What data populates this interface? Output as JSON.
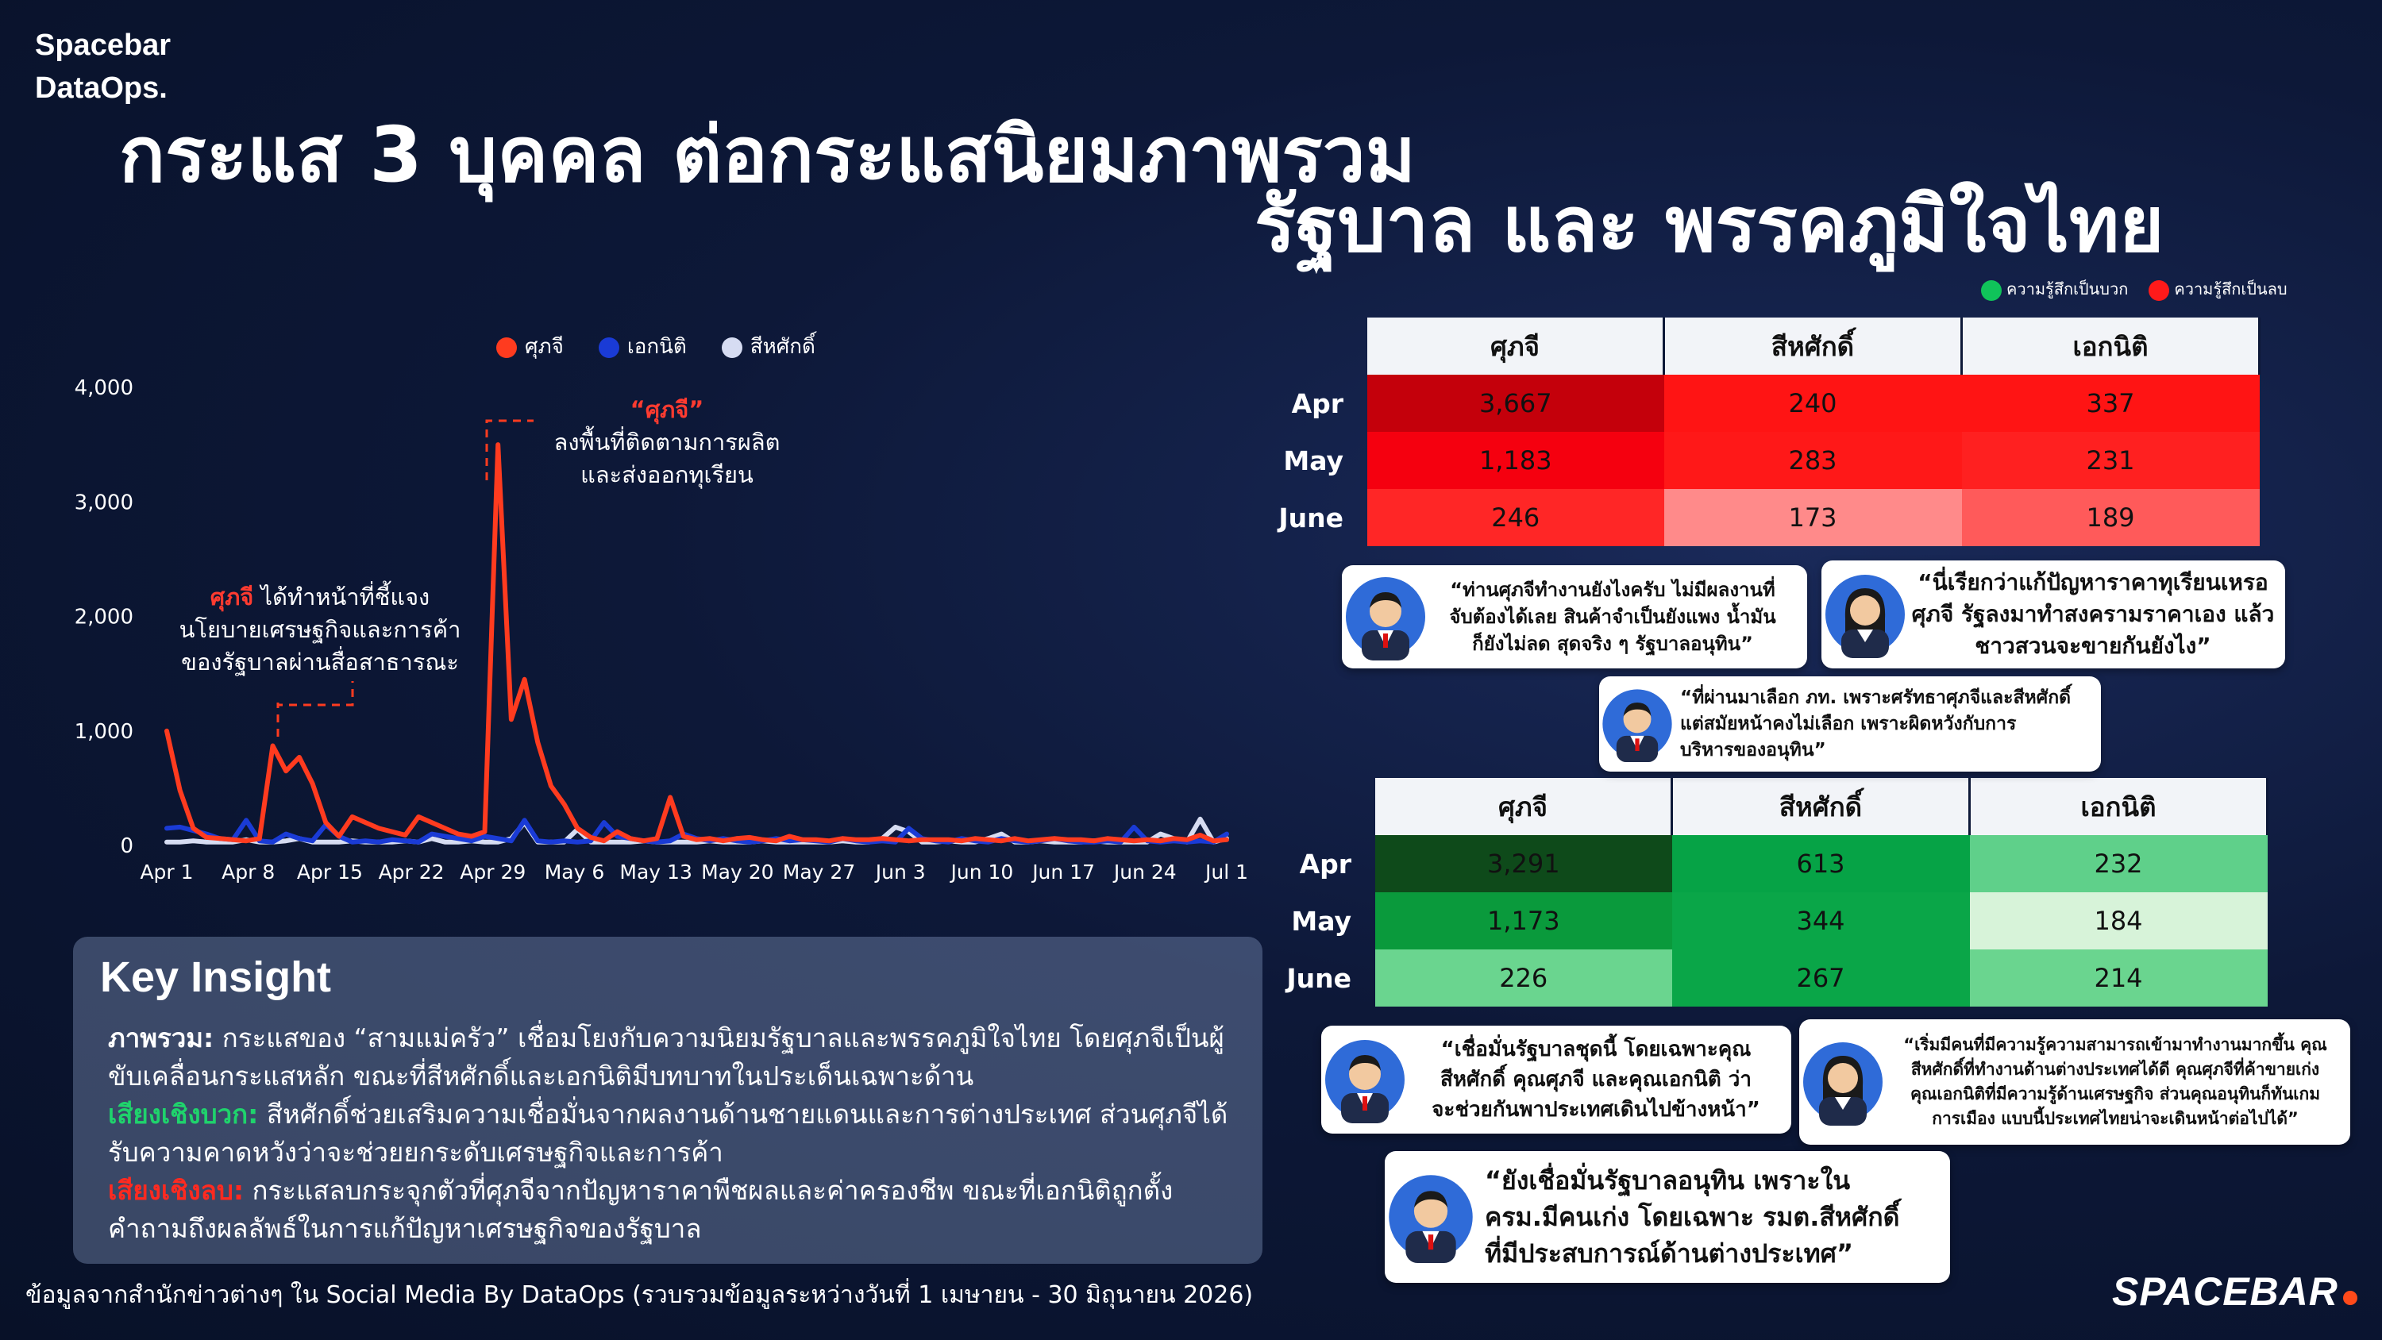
{
  "brand": {
    "line1": "Spacebar",
    "line2": "DataOps."
  },
  "title": {
    "line1": "กระแส 3 บุคคล ต่อกระแสนิยมภาพรวม",
    "line2": "รัฐบาล และ พรรคภูมิใจไทย"
  },
  "sentiment_legend": {
    "positive": "ความรู้สึกเป็นบวก",
    "negative": "ความรู้สึกเป็นลบ",
    "positive_color": "#10c35a",
    "negative_color": "#ff1a1a"
  },
  "chart_data": {
    "type": "line",
    "series": [
      {
        "name": "ศุภจี",
        "color": "#ff3b1f",
        "values": [
          1000,
          480,
          150,
          70,
          60,
          50,
          40,
          60,
          870,
          650,
          770,
          540,
          200,
          80,
          250,
          200,
          150,
          120,
          90,
          250,
          200,
          150,
          100,
          80,
          120,
          3500,
          1100,
          1450,
          900,
          520,
          360,
          150,
          70,
          40,
          120,
          60,
          40,
          60,
          420,
          80,
          50,
          60,
          40,
          60,
          70,
          50,
          40,
          80,
          50,
          50,
          40,
          60,
          50,
          50,
          60,
          50,
          40,
          50,
          50,
          50,
          40,
          60,
          50,
          40,
          60,
          40,
          50,
          60,
          50,
          50,
          40,
          60,
          50,
          40,
          50,
          40,
          60,
          50,
          90,
          40,
          50
        ]
      },
      {
        "name": "เอกนิติ",
        "color": "#1a3bd6",
        "values": [
          150,
          160,
          130,
          100,
          60,
          50,
          220,
          40,
          30,
          100,
          60,
          40,
          180,
          80,
          30,
          40,
          30,
          50,
          40,
          30,
          100,
          80,
          60,
          40,
          80,
          60,
          40,
          220,
          40,
          30,
          40,
          30,
          40,
          200,
          80,
          60,
          40,
          30,
          40,
          100,
          60,
          40,
          60,
          40,
          30,
          40,
          60,
          40,
          50,
          40,
          30,
          60,
          40,
          30,
          40,
          30,
          150,
          60,
          40,
          30,
          60,
          40,
          30,
          60,
          40,
          30,
          40,
          60,
          40,
          30,
          30,
          40,
          30,
          160,
          40,
          30,
          40,
          30,
          40,
          30,
          100
        ]
      },
      {
        "name": "สีหศักดิ์",
        "color": "#d6dcf2",
        "values": [
          30,
          30,
          40,
          30,
          30,
          30,
          50,
          30,
          30,
          40,
          60,
          30,
          30,
          30,
          40,
          30,
          30,
          30,
          40,
          30,
          60,
          30,
          30,
          40,
          30,
          30,
          60,
          200,
          30,
          30,
          30,
          140,
          30,
          30,
          30,
          30,
          40,
          30,
          30,
          30,
          30,
          40,
          30,
          30,
          30,
          40,
          30,
          30,
          30,
          30,
          30,
          40,
          30,
          30,
          60,
          160,
          120,
          30,
          30,
          40,
          30,
          30,
          60,
          100,
          30,
          30,
          40,
          30,
          30,
          30,
          40,
          30,
          30,
          30,
          30,
          100,
          60,
          30,
          230,
          30,
          60
        ]
      }
    ],
    "x_ticks": [
      "Apr 1",
      "Apr 8",
      "Apr 15",
      "Apr 22",
      "Apr 29",
      "May 6",
      "May 13",
      "May 20",
      "May 27",
      "Jun 3",
      "Jun 10",
      "Jun 17",
      "Jun 24",
      "Jul 1"
    ],
    "y_ticks": [
      "0",
      "1,000",
      "2,000",
      "3,000",
      "4,000"
    ],
    "ylim": [
      0,
      4000
    ],
    "legend": "top",
    "grid": false,
    "annotations": [
      {
        "name": "“ศุภจี”",
        "text1": "ลงพื้นที่ติดตามการผลิต",
        "text2": "และส่งออกทุเรียน"
      },
      {
        "name": "ศุภจี",
        "text1a": " ได้ทำหน้าที่ชี้แจง",
        "text2": "นโยบายเศรษฐกิจและการค้า",
        "text3": "ของรัฐบาลผ่านสื่อสาธารณะ"
      }
    ]
  },
  "negative_table": {
    "columns": [
      "ศุภจี",
      "สีหศักดิ์",
      "เอกนิติ"
    ],
    "rows": [
      {
        "label": "Apr",
        "values": [
          "3,667",
          "240",
          "337"
        ],
        "colors": [
          "#c4000b",
          "#ff1414",
          "#ff1414"
        ]
      },
      {
        "label": "May",
        "values": [
          "1,183",
          "283",
          "231"
        ],
        "colors": [
          "#f5000f",
          "#ff1818",
          "#ff2020"
        ]
      },
      {
        "label": "June",
        "values": [
          "246",
          "173",
          "189"
        ],
        "colors": [
          "#ff2626",
          "#ff8a8a",
          "#ff5a5a"
        ]
      }
    ]
  },
  "positive_table": {
    "columns": [
      "ศุภจี",
      "สีหศักดิ์",
      "เอกนิติ"
    ],
    "rows": [
      {
        "label": "Apr",
        "values": [
          "3,291",
          "613",
          "232"
        ],
        "colors": [
          "#0e4a1a",
          "#06a346",
          "#5fd08a"
        ]
      },
      {
        "label": "May",
        "values": [
          "1,173",
          "344",
          "184"
        ],
        "colors": [
          "#0a9a3c",
          "#0aa648",
          "#d7f3d9"
        ]
      },
      {
        "label": "June",
        "values": [
          "226",
          "267",
          "214"
        ],
        "colors": [
          "#6ad58f",
          "#0aa648",
          "#6ad58f"
        ]
      }
    ]
  },
  "quotes_negative": [
    {
      "l1": "“ท่านศุภจีทำงานยังไงครับ ไม่มีผลงานที่",
      "l2": "จับต้องได้เลย สินค้าจำเป็นยังแพง น้ำมัน",
      "l3": "ก็ยังไม่ลด สุดจริง ๆ รัฐบาลอนุทิน”"
    },
    {
      "l1": "“นี่เรียกว่าแก้ปัญหาราคาทุเรียนเหรอ",
      "l2": "ศุภจี รัฐลงมาทำสงครามราคาเอง แล้ว",
      "l3": "ชาวสวนจะขายกันยังไง”"
    },
    {
      "l1": "“ที่ผ่านมาเลือก ภท. เพราะศรัทธาศุภจีและสีหศักดิ์",
      "l2": "แต่สมัยหน้าคงไม่เลือก เพราะผิดหวังกับการ",
      "l3": "บริหารของอนุทิน”"
    }
  ],
  "quotes_positive": [
    {
      "l1": "“เชื่อมั่นรัฐบาลชุดนี้ โดยเฉพาะคุณ",
      "l2": "สีหศักดิ์ คุณศุภจี และคุณเอกนิติ ว่า",
      "l3": "จะช่วยกันพาประเทศเดินไปข้างหน้า”"
    },
    {
      "l1": "“เริ่มมีคนที่มีความรู้ความสามารถเข้ามาทำงานมากขึ้น คุณ",
      "l2": "สีหศักดิ์ที่ทำงานด้านต่างประเทศได้ดี คุณศุภจีที่ค้าขายเก่ง",
      "l3": "คุณเอกนิติที่มีความรู้ด้านเศรษฐกิจ ส่วนคุณอนุทินก็ทันเกม",
      "l4": "การเมือง แบบนี้ประเทศไทยน่าจะเดินหน้าต่อไปได้”"
    },
    {
      "l1": "“ยังเชื่อมั่นรัฐบาลอนุทิน เพราะใน",
      "l2": "ครม.มีคนเก่ง โดยเฉพาะ รมต.สีหศักดิ์",
      "l3": "ที่มีประสบการณ์ด้านต่างประเทศ”"
    }
  ],
  "insight": {
    "heading": "Key Insight",
    "p1_label": "ภาพรวม:",
    "p1_text": " กระแสของ “สามแม่ครัว” เชื่อมโยงกับความนิยมรัฐบาลและพรรคภูมิใจไทย โดยศุภจีเป็นผู้",
    "p1_text2": "ขับเคลื่อนกระแสหลัก ขณะที่สีหศักดิ์และเอกนิติมีบทบาทในประเด็นเฉพาะด้าน",
    "p2_label": "เสียงเชิงบวก:",
    "p2_text": " สีหศักดิ์ช่วยเสริมความเชื่อมั่นจากผลงานด้านชายแดนและการต่างประเทศ ส่วนศุภจีได้",
    "p2_text2": "รับความคาดหวังว่าจะช่วยยกระดับเศรษฐกิจและการค้า",
    "p3_label": "เสียงเชิงลบ:",
    "p3_text": " กระแสลบกระจุกตัวที่ศุภจีจากปัญหาราคาพืชผลและค่าครองชีพ ขณะที่เอกนิติถูกตั้ง",
    "p3_text2": "คำถามถึงผลลัพธ์ในการแก้ปัญหาเศรษฐกิจของรัฐบาล"
  },
  "source": "ข้อมูลจากสำนักข่าวต่างๆ ใน Social Media By DataOps (รวบรวมข้อมูลระหว่างวันที่ 1 เมษายน - 30 มิถุนายน 2026)",
  "logo": "SPACEBAR"
}
